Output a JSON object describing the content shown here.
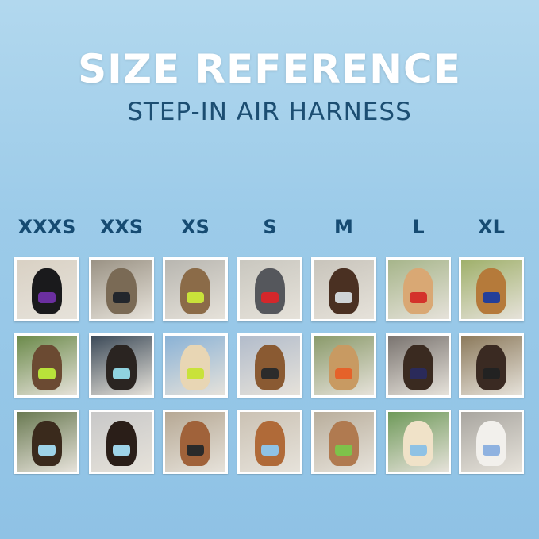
{
  "header": {
    "title": "SIZE REFERENCE",
    "subtitle": "STEP-IN AIR HARNESS"
  },
  "sizes": [
    "XXXS",
    "XXS",
    "XS",
    "S",
    "M",
    "L",
    "XL"
  ],
  "colors": {
    "title": "#ffffff",
    "subtitle": "#1c4e72",
    "size_label": "#164b72",
    "background": "#9ccbe9"
  },
  "photos": [
    [
      {
        "bg": "#d9d1c4",
        "pet": "#1a1a1c",
        "harness": "#6b2fa0"
      },
      {
        "bg": "#9a9284",
        "pet": "#7a6a55",
        "harness": "#22262c"
      },
      {
        "bg": "#b8b6b0",
        "pet": "#8b6b48",
        "harness": "#c9e23a"
      },
      {
        "bg": "#c9c7bf",
        "pet": "#55575c",
        "harness": "#d4272b"
      },
      {
        "bg": "#c8c4bb",
        "pet": "#4a3022",
        "harness": "#cfd3d6"
      },
      {
        "bg": "#a6b58a",
        "pet": "#d9a874",
        "harness": "#d4322a"
      },
      {
        "bg": "#9fb06a",
        "pet": "#b57a3a",
        "harness": "#233f9a"
      }
    ],
    [
      {
        "bg": "#6b8a4a",
        "pet": "#6b4a32",
        "harness": "#b9e23a"
      },
      {
        "bg": "#3c4a58",
        "pet": "#2a2421",
        "harness": "#8fd3e0"
      },
      {
        "bg": "#8ab2d6",
        "pet": "#e8d6b4",
        "harness": "#c9e23a"
      },
      {
        "bg": "#b2bccb",
        "pet": "#8a5a32",
        "harness": "#2b2b2b"
      },
      {
        "bg": "#8a9a6a",
        "pet": "#c89a62",
        "harness": "#e5622a"
      },
      {
        "bg": "#7a7470",
        "pet": "#3a2a20",
        "harness": "#2a2a5a"
      },
      {
        "bg": "#8c7a5c",
        "pet": "#3a2a22",
        "harness": "#222222"
      }
    ],
    [
      {
        "bg": "#6a7a52",
        "pet": "#3a2a1c",
        "harness": "#9ed3e8"
      },
      {
        "bg": "#c8c8c8",
        "pet": "#2a1e18",
        "harness": "#9ed3e8"
      },
      {
        "bg": "#b6a894",
        "pet": "#a0623a",
        "harness": "#2a2a2a"
      },
      {
        "bg": "#cbc2b4",
        "pet": "#b06a38",
        "harness": "#8fc2e5"
      },
      {
        "bg": "#b9ae9c",
        "pet": "#b07a50",
        "harness": "#7ec24a"
      },
      {
        "bg": "#6f9a5a",
        "pet": "#f0e2c8",
        "harness": "#8fc2e5"
      },
      {
        "bg": "#a9a6a0",
        "pet": "#f2f0ec",
        "harness": "#8fb2e0"
      }
    ]
  ]
}
